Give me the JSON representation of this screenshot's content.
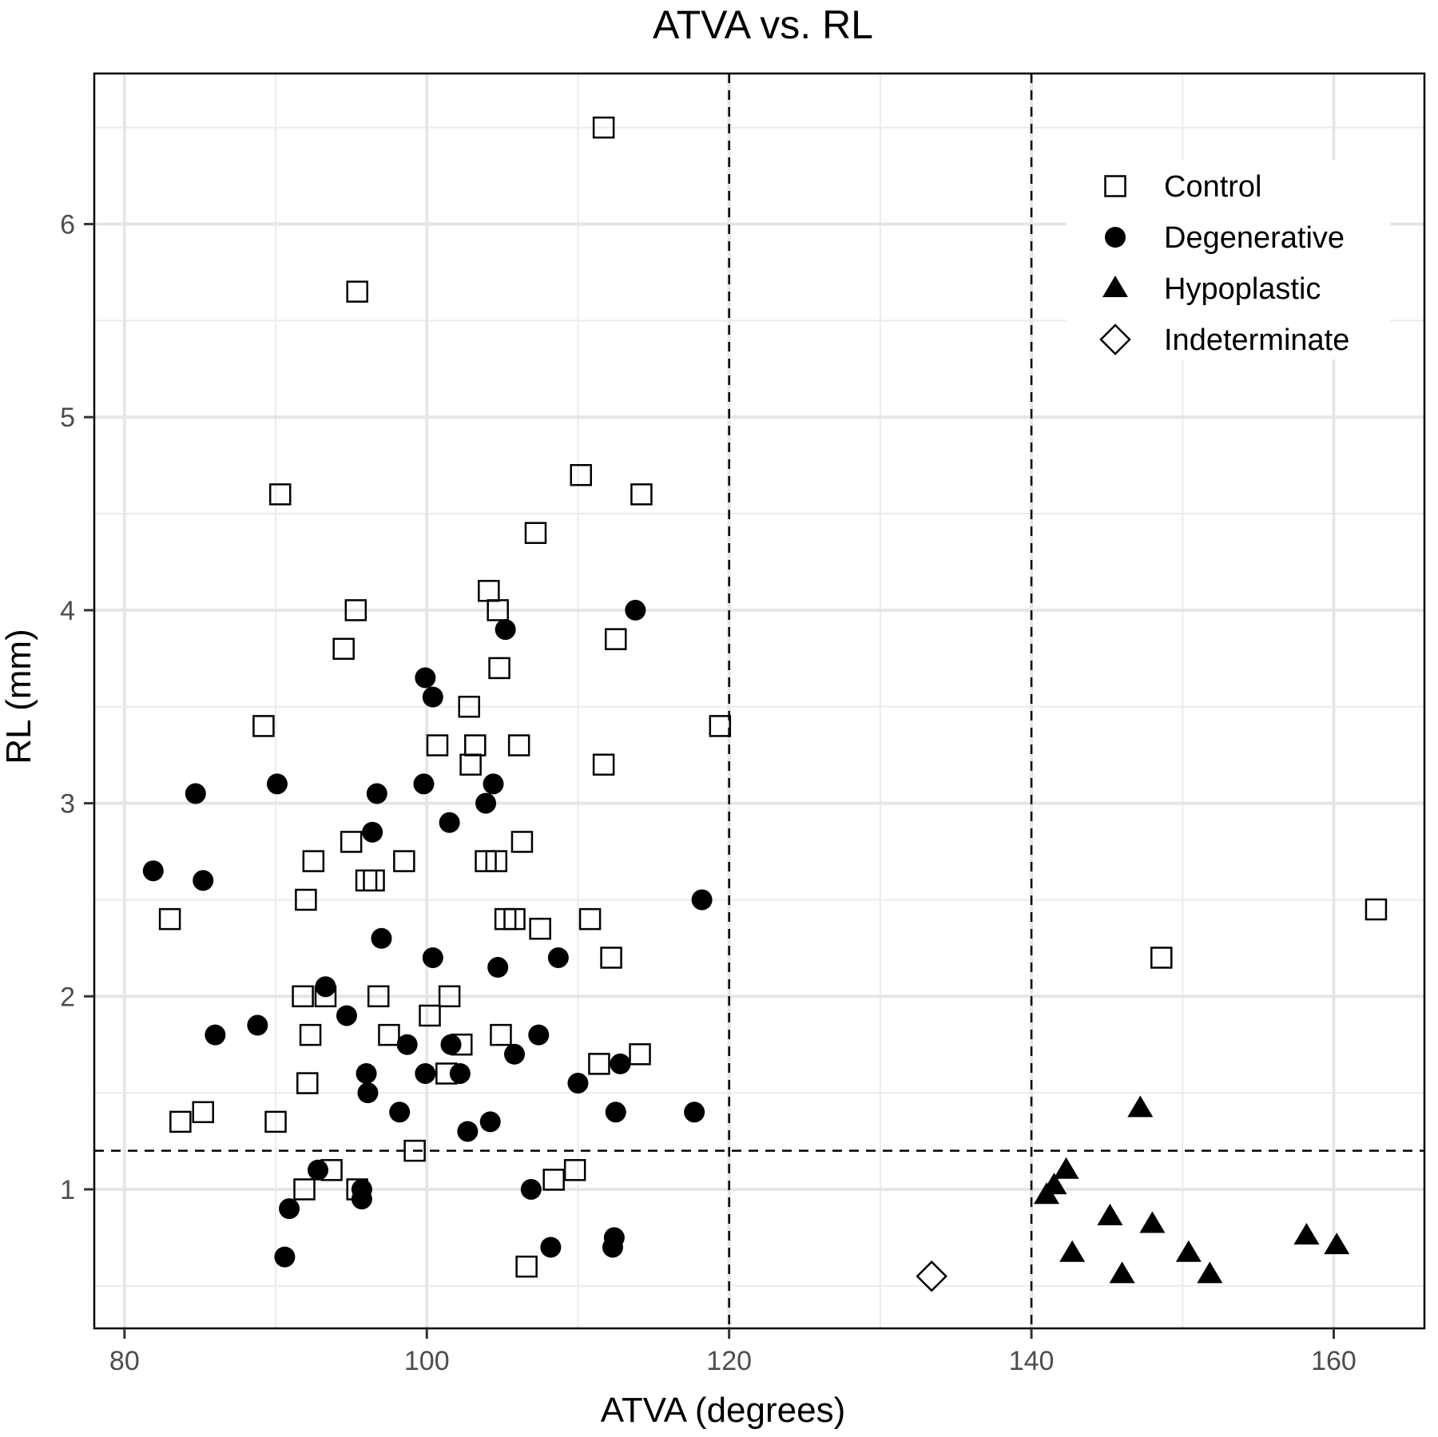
{
  "chart_data": {
    "type": "scatter",
    "title": "ATVA vs. RL",
    "xlabel": "ATVA (degrees)",
    "ylabel": "RL (mm)",
    "xlim": [
      78,
      166
    ],
    "ylim": [
      0.28,
      6.78
    ],
    "x_ticks": [
      80,
      100,
      120,
      140,
      160
    ],
    "y_ticks": [
      1,
      2,
      3,
      4,
      5,
      6
    ],
    "x_tick_labels": [
      "80",
      "100",
      "120",
      "140",
      "160"
    ],
    "y_tick_labels": [
      "1",
      "2",
      "3",
      "4",
      "5",
      "6"
    ],
    "grid": true,
    "legend_position": "top-right",
    "reference_lines": [
      {
        "orientation": "vertical",
        "value": 120,
        "style": "dashed"
      },
      {
        "orientation": "vertical",
        "value": 140,
        "style": "dashed"
      },
      {
        "orientation": "horizontal",
        "value": 1.2,
        "style": "dashed"
      }
    ],
    "series": [
      {
        "name": "Control",
        "marker": "open-square",
        "points": [
          [
            111.7,
            6.5
          ],
          [
            95.4,
            5.65
          ],
          [
            90.3,
            4.6
          ],
          [
            110.2,
            4.7
          ],
          [
            114.2,
            4.6
          ],
          [
            107.2,
            4.4
          ],
          [
            95.3,
            4.0
          ],
          [
            104.1,
            4.1
          ],
          [
            104.7,
            4.0
          ],
          [
            94.5,
            3.8
          ],
          [
            112.5,
            3.85
          ],
          [
            104.8,
            3.7
          ],
          [
            102.8,
            3.5
          ],
          [
            89.2,
            3.4
          ],
          [
            119.4,
            3.4
          ],
          [
            100.7,
            3.3
          ],
          [
            103.2,
            3.3
          ],
          [
            106.1,
            3.3
          ],
          [
            102.9,
            3.2
          ],
          [
            111.7,
            3.2
          ],
          [
            95.0,
            2.8
          ],
          [
            106.3,
            2.8
          ],
          [
            92.5,
            2.7
          ],
          [
            98.5,
            2.7
          ],
          [
            103.9,
            2.7
          ],
          [
            104.6,
            2.7
          ],
          [
            83.0,
            2.4
          ],
          [
            92.0,
            2.5
          ],
          [
            96.0,
            2.6
          ],
          [
            96.5,
            2.6
          ],
          [
            105.2,
            2.4
          ],
          [
            105.8,
            2.4
          ],
          [
            107.5,
            2.35
          ],
          [
            110.8,
            2.4
          ],
          [
            112.2,
            2.2
          ],
          [
            91.8,
            2.0
          ],
          [
            93.3,
            2.0
          ],
          [
            96.8,
            2.0
          ],
          [
            101.5,
            2.0
          ],
          [
            100.2,
            1.9
          ],
          [
            92.3,
            1.8
          ],
          [
            97.5,
            1.8
          ],
          [
            102.3,
            1.75
          ],
          [
            104.9,
            1.8
          ],
          [
            114.1,
            1.7
          ],
          [
            111.4,
            1.65
          ],
          [
            101.3,
            1.6
          ],
          [
            92.1,
            1.55
          ],
          [
            83.7,
            1.35
          ],
          [
            85.2,
            1.4
          ],
          [
            90.0,
            1.35
          ],
          [
            99.2,
            1.2
          ],
          [
            93.7,
            1.1
          ],
          [
            109.8,
            1.1
          ],
          [
            108.4,
            1.05
          ],
          [
            91.9,
            1.0
          ],
          [
            95.4,
            1.0
          ],
          [
            106.6,
            0.6
          ],
          [
            148.6,
            2.2
          ],
          [
            162.8,
            2.45
          ]
        ]
      },
      {
        "name": "Degenerative",
        "marker": "filled-circle",
        "points": [
          [
            113.8,
            4.0
          ],
          [
            105.2,
            3.9
          ],
          [
            99.9,
            3.65
          ],
          [
            100.4,
            3.55
          ],
          [
            84.7,
            3.05
          ],
          [
            90.1,
            3.1
          ],
          [
            96.7,
            3.05
          ],
          [
            99.8,
            3.1
          ],
          [
            104.4,
            3.1
          ],
          [
            101.5,
            2.9
          ],
          [
            103.9,
            3.0
          ],
          [
            96.4,
            2.85
          ],
          [
            81.9,
            2.65
          ],
          [
            85.2,
            2.6
          ],
          [
            118.2,
            2.5
          ],
          [
            97.0,
            2.3
          ],
          [
            100.4,
            2.2
          ],
          [
            108.7,
            2.2
          ],
          [
            104.7,
            2.15
          ],
          [
            93.3,
            2.05
          ],
          [
            94.7,
            1.9
          ],
          [
            88.8,
            1.85
          ],
          [
            86.0,
            1.8
          ],
          [
            107.4,
            1.8
          ],
          [
            98.7,
            1.75
          ],
          [
            101.6,
            1.75
          ],
          [
            105.8,
            1.7
          ],
          [
            112.8,
            1.65
          ],
          [
            96.0,
            1.6
          ],
          [
            99.9,
            1.6
          ],
          [
            102.2,
            1.6
          ],
          [
            110.0,
            1.55
          ],
          [
            96.1,
            1.5
          ],
          [
            98.2,
            1.4
          ],
          [
            112.5,
            1.4
          ],
          [
            117.7,
            1.4
          ],
          [
            104.2,
            1.35
          ],
          [
            102.7,
            1.3
          ],
          [
            92.8,
            1.1
          ],
          [
            95.7,
            1.0
          ],
          [
            95.7,
            0.95
          ],
          [
            106.9,
            1.0
          ],
          [
            90.9,
            0.9
          ],
          [
            112.4,
            0.75
          ],
          [
            112.3,
            0.7
          ],
          [
            108.2,
            0.7
          ],
          [
            90.6,
            0.65
          ]
        ]
      },
      {
        "name": "Hypoplastic",
        "marker": "filled-triangle",
        "points": [
          [
            141.0,
            0.97
          ],
          [
            141.5,
            1.02
          ],
          [
            142.3,
            1.1
          ],
          [
            142.7,
            0.67
          ],
          [
            145.2,
            0.86
          ],
          [
            146.0,
            0.56
          ],
          [
            147.2,
            1.42
          ],
          [
            148.0,
            0.82
          ],
          [
            150.4,
            0.67
          ],
          [
            151.8,
            0.56
          ],
          [
            158.2,
            0.76
          ],
          [
            160.2,
            0.71
          ]
        ]
      },
      {
        "name": "Indeterminate",
        "marker": "open-diamond",
        "points": [
          [
            133.4,
            0.55
          ]
        ]
      }
    ]
  }
}
